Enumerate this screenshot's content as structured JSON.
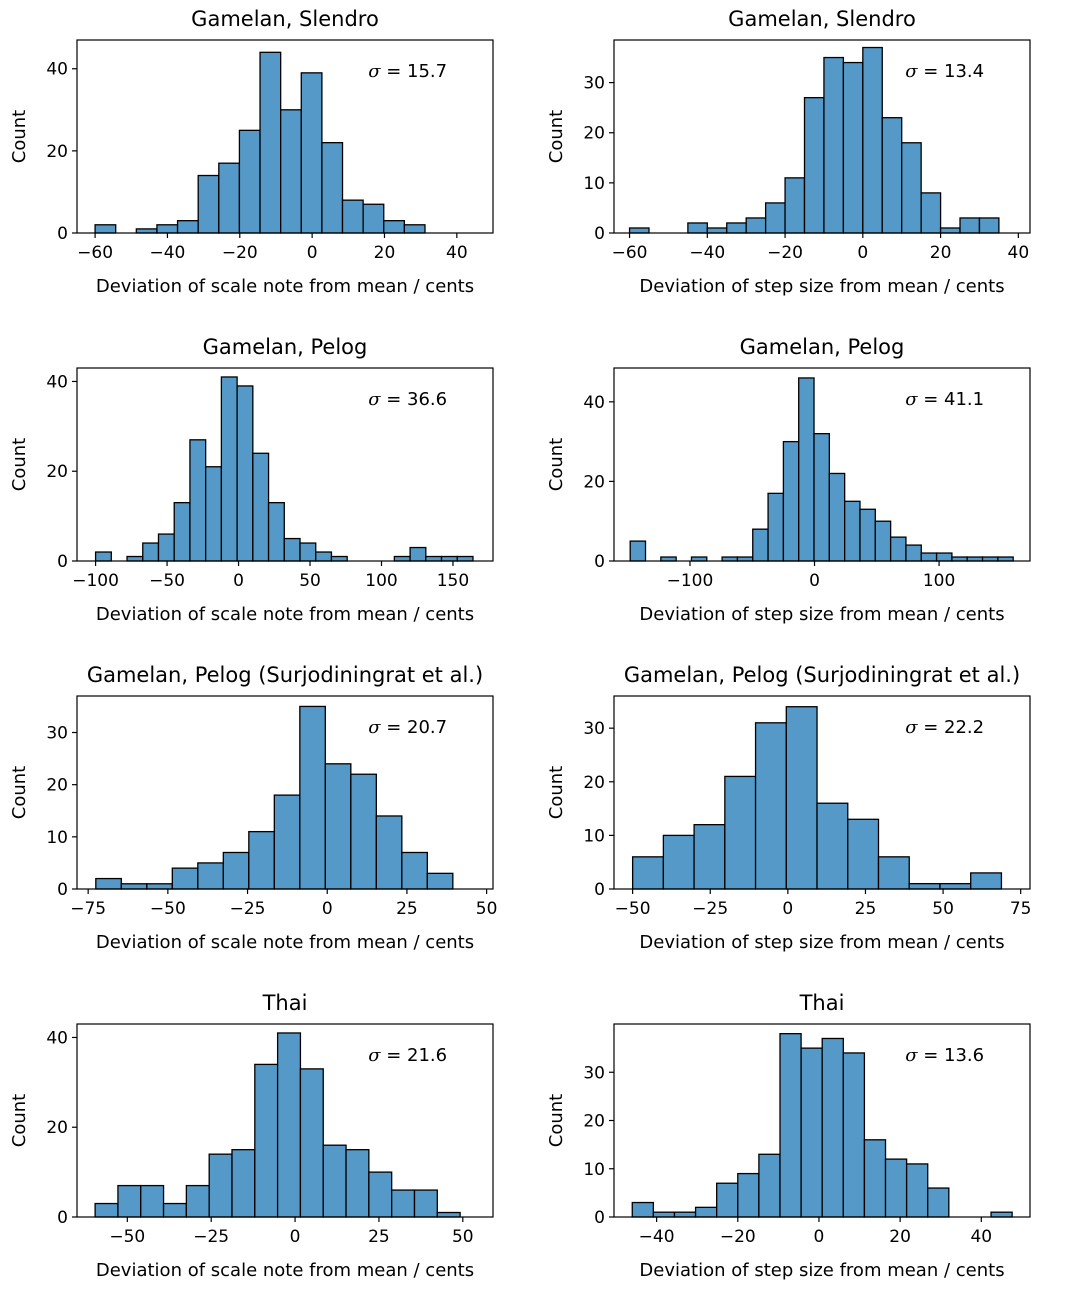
{
  "style": {
    "bar_color": "#5499c7",
    "edge_color": "#000000",
    "background": "#ffffff"
  },
  "chart_data": [
    {
      "type": "bar",
      "title": "Gamelan, Slendro",
      "xlabel": "Deviation of scale note from mean / cents",
      "ylabel": "Count",
      "annotation": "σ = 15.7",
      "xlim": [
        -65,
        50
      ],
      "ylim": [
        0,
        47
      ],
      "xticks": [
        -60,
        -40,
        -20,
        0,
        20,
        40
      ],
      "yticks": [
        0,
        20,
        40
      ],
      "bin_edges": [
        -60,
        -54.3,
        -48.6,
        -42.9,
        -37.2,
        -31.5,
        -25.8,
        -20.1,
        -14.4,
        -8.7,
        -3.0,
        2.7,
        8.4,
        14.1,
        19.8,
        25.5,
        31.2,
        36.9,
        42.6,
        48.3
      ],
      "counts": [
        2,
        0,
        1,
        2,
        3,
        14,
        17,
        25,
        44,
        30,
        39,
        22,
        8,
        7,
        3,
        2,
        0,
        0,
        0
      ]
    },
    {
      "type": "bar",
      "title": "Gamelan, Slendro",
      "xlabel": "Deviation of step size from mean / cents",
      "ylabel": "Count",
      "annotation": "σ = 13.4",
      "xlim": [
        -64,
        43
      ],
      "ylim": [
        0,
        38.5
      ],
      "xticks": [
        -60,
        -40,
        -20,
        0,
        20,
        40
      ],
      "yticks": [
        0,
        10,
        20,
        30
      ],
      "bin_edges": [
        -60,
        -55,
        -50,
        -45,
        -40,
        -35,
        -30,
        -25,
        -20,
        -15,
        -10,
        -5,
        0,
        5,
        10,
        15,
        20,
        25,
        30,
        35,
        40
      ],
      "counts": [
        1,
        0,
        0,
        2,
        1,
        2,
        3,
        6,
        11,
        27,
        35,
        34,
        37,
        23,
        18,
        8,
        1,
        3,
        3,
        0
      ]
    },
    {
      "type": "bar",
      "title": "Gamelan, Pelog",
      "xlabel": "Deviation of scale note from mean / cents",
      "ylabel": "Count",
      "annotation": "σ = 36.6",
      "xlim": [
        -113,
        178
      ],
      "ylim": [
        0,
        43
      ],
      "xticks": [
        -100,
        -50,
        0,
        50,
        100,
        150
      ],
      "yticks": [
        0,
        20,
        40
      ],
      "bin_edges": [
        -100,
        -89,
        -78,
        -67,
        -56,
        -45,
        -34,
        -23,
        -12,
        -1,
        10,
        21,
        32,
        43,
        54,
        65,
        76,
        87,
        98,
        109,
        120,
        131,
        142,
        153,
        164
      ],
      "counts": [
        2,
        0,
        1,
        4,
        6,
        13,
        27,
        21,
        41,
        39,
        24,
        13,
        5,
        4,
        2,
        1,
        0,
        0,
        0,
        1,
        3,
        1,
        1,
        1
      ]
    },
    {
      "type": "bar",
      "title": "Gamelan, Pelog",
      "xlabel": "Deviation of step size from mean / cents",
      "ylabel": "Count",
      "annotation": "σ = 41.1",
      "xlim": [
        -161,
        173
      ],
      "ylim": [
        0,
        48.5
      ],
      "xticks": [
        -100,
        0,
        100
      ],
      "yticks": [
        0,
        20,
        40
      ],
      "bin_edges": [
        -148,
        -135.7,
        -123.4,
        -111.1,
        -98.8,
        -86.5,
        -74.2,
        -61.9,
        -49.6,
        -37.3,
        -25.0,
        -12.7,
        -0.4,
        11.9,
        24.2,
        36.5,
        48.8,
        61.1,
        73.4,
        85.7,
        98.0,
        110.3,
        122.6,
        134.9,
        147.2,
        159.5
      ],
      "counts": [
        5,
        0,
        1,
        0,
        1,
        0,
        1,
        1,
        8,
        17,
        30,
        46,
        32,
        22,
        15,
        13,
        10,
        6,
        4,
        2,
        2,
        1,
        1,
        1,
        1
      ]
    },
    {
      "type": "bar",
      "title": "Gamelan, Pelog (Surjodiningrat et al.)",
      "xlabel": "Deviation of scale note from mean / cents",
      "ylabel": "Count",
      "annotation": "σ = 20.7",
      "xlim": [
        -78.5,
        52
      ],
      "ylim": [
        0,
        37
      ],
      "xticks": [
        -75,
        -50,
        -25,
        0,
        25,
        50
      ],
      "yticks": [
        0,
        10,
        20,
        30
      ],
      "bin_edges": [
        -72.6,
        -64.6,
        -56.6,
        -48.6,
        -40.6,
        -32.6,
        -24.6,
        -16.6,
        -8.6,
        -0.6,
        7.4,
        15.4,
        23.4,
        31.4,
        39.4,
        47.4
      ],
      "counts": [
        2,
        1,
        1,
        4,
        5,
        7,
        11,
        18,
        35,
        24,
        22,
        14,
        7,
        3,
        0
      ]
    },
    {
      "type": "bar",
      "title": "Gamelan, Pelog (Surjodiningrat et al.)",
      "xlabel": "Deviation of step size from mean / cents",
      "ylabel": "Count",
      "annotation": "σ = 22.2",
      "xlim": [
        -56,
        78
      ],
      "ylim": [
        0,
        36
      ],
      "xticks": [
        -50,
        -25,
        0,
        25,
        50,
        75
      ],
      "yticks": [
        0,
        10,
        20,
        30
      ],
      "bin_edges": [
        -50,
        -40.1,
        -30.2,
        -20.3,
        -10.4,
        -0.5,
        9.4,
        19.3,
        29.2,
        39.1,
        49.0,
        58.9,
        68.8,
        78.7
      ],
      "counts": [
        6,
        10,
        12,
        21,
        31,
        34,
        16,
        13,
        6,
        1,
        1,
        3,
        0
      ]
    },
    {
      "type": "bar",
      "title": "Thai",
      "xlabel": "Deviation of scale note from mean / cents",
      "ylabel": "Count",
      "annotation": "σ = 21.6",
      "xlim": [
        -65,
        59
      ],
      "ylim": [
        0,
        43
      ],
      "xticks": [
        -50,
        -25,
        0,
        25,
        50
      ],
      "yticks": [
        0,
        20,
        40
      ],
      "bin_edges": [
        -59.6,
        -52.8,
        -46.0,
        -39.2,
        -32.4,
        -25.6,
        -18.8,
        -12.0,
        -5.2,
        1.6,
        8.4,
        15.2,
        22.0,
        28.8,
        35.6,
        42.4,
        49.2,
        56.0
      ],
      "counts": [
        3,
        7,
        7,
        3,
        7,
        14,
        15,
        34,
        41,
        33,
        16,
        15,
        10,
        6,
        6,
        1,
        0
      ]
    },
    {
      "type": "bar",
      "title": "Thai",
      "xlabel": "Deviation of step size from mean / cents",
      "ylabel": "Count",
      "annotation": "σ = 13.6",
      "xlim": [
        -50.5,
        52
      ],
      "ylim": [
        0,
        40
      ],
      "xticks": [
        -40,
        -20,
        0,
        20,
        40
      ],
      "yticks": [
        0,
        10,
        20,
        30
      ],
      "bin_edges": [
        -46.0,
        -40.8,
        -35.6,
        -30.4,
        -25.2,
        -20.0,
        -14.8,
        -9.6,
        -4.4,
        0.8,
        6.0,
        11.2,
        16.4,
        21.6,
        26.8,
        32.0,
        37.2,
        42.4,
        47.6
      ],
      "counts": [
        3,
        1,
        1,
        2,
        7,
        9,
        13,
        38,
        35,
        37,
        34,
        16,
        12,
        11,
        6,
        0,
        0,
        1
      ]
    }
  ]
}
